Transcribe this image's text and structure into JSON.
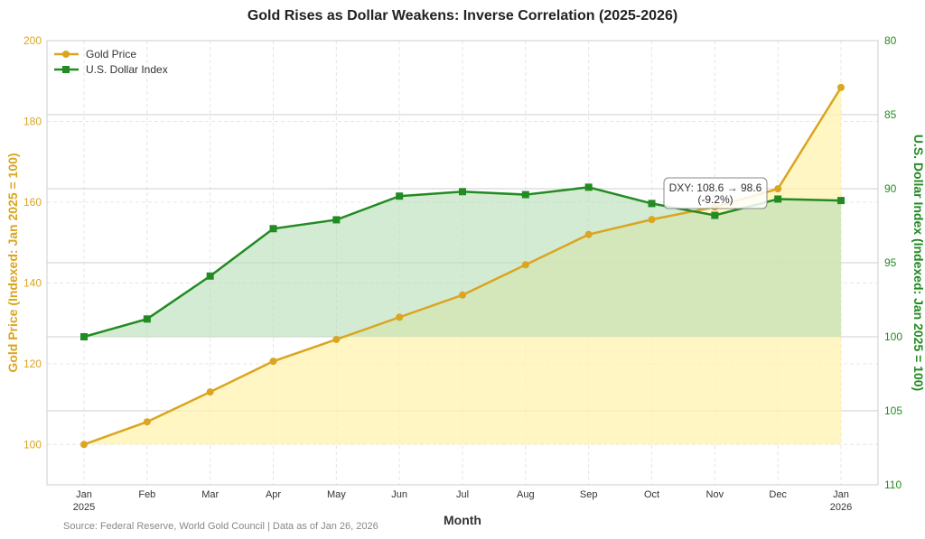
{
  "chart_data": {
    "type": "line",
    "title": "Gold Rises as Dollar Weakens: Inverse Correlation (2025-2026)",
    "xlabel": "Month",
    "categories": [
      "Jan\n2025",
      "Feb",
      "Mar",
      "Apr",
      "May",
      "Jun",
      "Jul",
      "Aug",
      "Sep",
      "Oct",
      "Nov",
      "Dec",
      "Jan\n2026"
    ],
    "y_left": {
      "label": "Gold Price (Indexed: Jan 2025 = 100)",
      "range": [
        90,
        200
      ],
      "ticks": [
        100,
        120,
        140,
        160,
        180,
        200
      ],
      "color": "#DAA520"
    },
    "y_right": {
      "label": "U.S. Dollar Index (Indexed: Jan 2025 = 100)",
      "range": [
        80,
        110
      ],
      "inverted": true,
      "ticks": [
        80,
        85,
        90,
        95,
        100,
        105,
        110
      ],
      "color": "#228B22"
    },
    "series": [
      {
        "name": "Gold Price",
        "axis": "left",
        "color": "#DAA520",
        "fill": "#FFF3B0",
        "marker": "circle",
        "values": [
          100,
          105.6,
          113,
          120.6,
          126,
          131.5,
          137,
          144.5,
          152,
          155.7,
          158.8,
          163.3,
          188.4
        ]
      },
      {
        "name": "U.S. Dollar Index",
        "axis": "right",
        "color": "#228B22",
        "fill": "#B5DDB5",
        "marker": "square",
        "values": [
          100,
          98.8,
          95.9,
          92.7,
          92.1,
          90.5,
          90.2,
          90.4,
          89.9,
          91,
          91.8,
          90.7,
          90.8
        ]
      }
    ],
    "annotation": {
      "line1": "DXY: 108.6 → 98.6",
      "line2": "(-9.2%)"
    },
    "legend": "top-left",
    "grid": true,
    "source": "Source: Federal Reserve, World Gold Council | Data as of Jan 26, 2026"
  }
}
